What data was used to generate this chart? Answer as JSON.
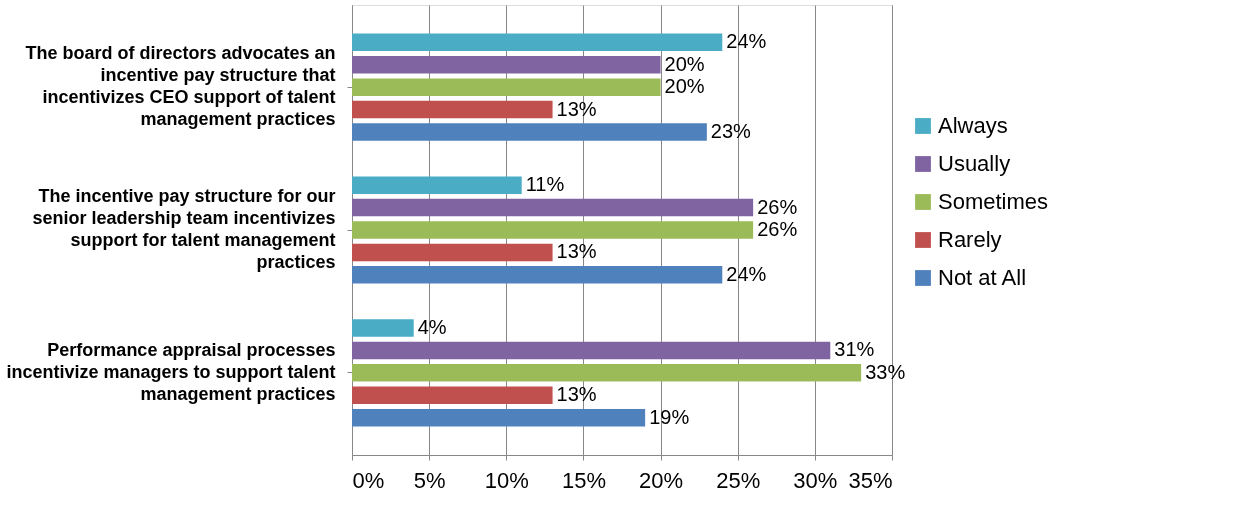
{
  "chart_data": {
    "type": "bar",
    "orientation": "horizontal",
    "categories": [
      "The board of directors advocates an incentive pay structure that incentivizes CEO support of talent management practices",
      "The incentive pay structure for our senior leadership team incentivizes support for talent management practices",
      "Performance appraisal processes incentivize managers to support talent management practices"
    ],
    "series": [
      {
        "name": "Always",
        "color": "#4bacc6",
        "values": [
          24,
          11,
          4
        ],
        "value_labels": [
          "24%",
          "11%",
          "4%"
        ]
      },
      {
        "name": "Usually",
        "color": "#8064a2",
        "values": [
          20,
          26,
          31
        ],
        "value_labels": [
          "20%",
          "26%",
          "31%"
        ]
      },
      {
        "name": "Sometimes",
        "color": "#9bbb59",
        "values": [
          20,
          26,
          33
        ],
        "value_labels": [
          "20%",
          "26%",
          "33%"
        ]
      },
      {
        "name": "Rarely",
        "color": "#c0504d",
        "values": [
          13,
          13,
          13
        ],
        "value_labels": [
          "13%",
          "13%",
          "13%"
        ]
      },
      {
        "name": "Not at All",
        "color": "#4f81bd",
        "values": [
          23,
          24,
          19
        ],
        "value_labels": [
          "23%",
          "24%",
          "19%"
        ]
      }
    ],
    "xlim": [
      0,
      35
    ],
    "xticks": [
      {
        "value": 0,
        "label": "0%"
      },
      {
        "value": 5,
        "label": "5%"
      },
      {
        "value": 10,
        "label": "10%"
      },
      {
        "value": 15,
        "label": "15%"
      },
      {
        "value": 20,
        "label": "20%"
      },
      {
        "value": 25,
        "label": "25%"
      },
      {
        "value": 30,
        "label": "30%"
      },
      {
        "value": 35,
        "label": "35%"
      }
    ],
    "grid": "x",
    "legend": "right"
  }
}
